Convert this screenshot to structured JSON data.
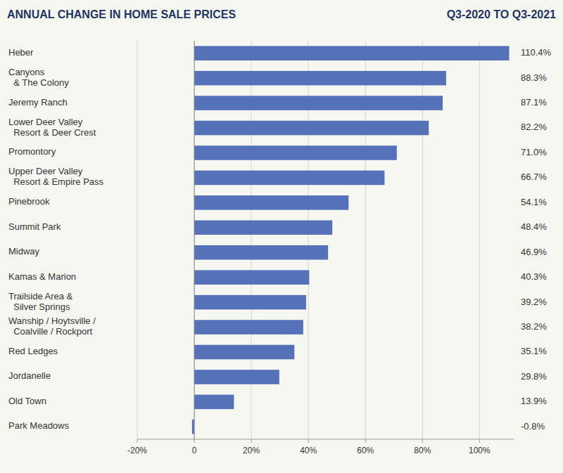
{
  "chart_data": {
    "type": "bar",
    "orientation": "horizontal",
    "title": "ANNUAL CHANGE IN HOME SALE PRICES",
    "subtitle": "Q3-2020 TO Q3-2021",
    "categories": [
      "Heber",
      "Canyons\n  & The Colony",
      "Jeremy Ranch",
      "Lower Deer Valley\n  Resort & Deer Crest",
      "Promontory",
      "Upper Deer Valley\n  Resort & Empire Pass",
      "Pinebrook",
      "Summit Park",
      "Midway",
      "Kamas & Marion",
      "Trailside Area &\n  Silver Springs",
      "Wanship / Hoytsville /\n  Coalville / Rockport",
      "Red Ledges",
      "Jordanelle",
      "Old Town",
      "Park Meadows"
    ],
    "values": [
      110.4,
      88.3,
      87.1,
      82.2,
      71.0,
      66.7,
      54.1,
      48.4,
      46.9,
      40.3,
      39.2,
      38.2,
      35.1,
      29.8,
      13.9,
      -0.8
    ],
    "value_labels": [
      "110.4%",
      "88.3%",
      "87.1%",
      "82.2%",
      "71.0%",
      "66.7%",
      "54.1%",
      "48.4%",
      "46.9%",
      "40.3%",
      "39.2%",
      "38.2%",
      "35.1%",
      "29.8%",
      "13.9%",
      "-0.8%"
    ],
    "data_labels": true,
    "color": "#5571b8",
    "xlim": [
      -20,
      112
    ],
    "xticks": [
      {
        "value": -20,
        "label": "-20%"
      },
      0,
      {
        "value": 20,
        "label": "20%"
      },
      {
        "value": 40,
        "label": "40%"
      },
      {
        "value": 60,
        "label": "60%"
      },
      {
        "value": 80,
        "label": "80%"
      },
      {
        "value": 100,
        "label": "100%"
      }
    ],
    "grid": true
  }
}
